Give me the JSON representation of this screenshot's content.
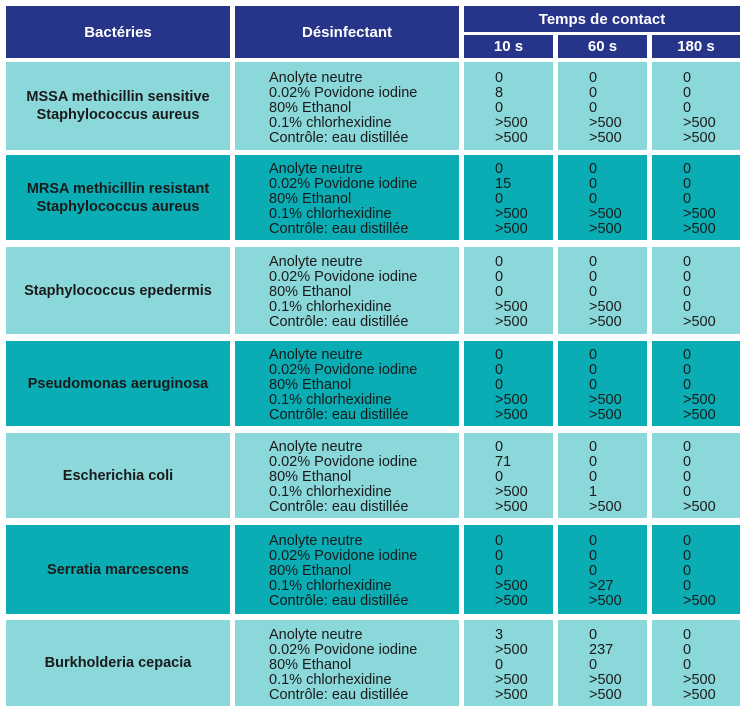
{
  "header": {
    "bacteria_label": "Bactéries",
    "disinfectant_label": "Désinfectant",
    "contact_time_label": "Temps de contact",
    "times": [
      "10 s",
      "60 s",
      "180 s"
    ]
  },
  "disinfectants": "Anolyte neutre\n0.02% Povidone iodine\n80% Ethanol\n0.1% chlorhexidine\nContrôle: eau distillée",
  "rows": [
    {
      "bacteria": "MSSA methicillin sensitive Staphylococcus aureus",
      "t10": "0\n8\n0\n>500\n>500",
      "t60": "0\n0\n0\n>500\n>500",
      "t180": "0\n0\n0\n>500\n>500"
    },
    {
      "bacteria": "MRSA methicillin resistant Staphylococcus aureus",
      "t10": "0\n15\n0\n>500\n>500",
      "t60": "0\n0\n0\n>500\n>500",
      "t180": "0\n0\n0\n>500\n>500"
    },
    {
      "bacteria": "Staphylococcus epedermis",
      "t10": "0\n0\n0\n>500\n>500",
      "t60": "0\n0\n0\n>500\n>500",
      "t180": "0\n0\n0\n0\n>500"
    },
    {
      "bacteria": "Pseudomonas aeruginosa",
      "t10": "0\n0\n0\n>500\n>500",
      "t60": "0\n0\n0\n>500\n>500",
      "t180": "0\n0\n0\n>500\n>500"
    },
    {
      "bacteria": "Escherichia coli",
      "t10": "0\n71\n0\n>500\n>500",
      "t60": "0\n0\n0\n1\n>500",
      "t180": "0\n0\n0\n0\n>500"
    },
    {
      "bacteria": "Serratia marcescens",
      "t10": "0\n0\n0\n>500\n>500",
      "t60": "0\n0\n0\n>27\n>500",
      "t180": "0\n0\n0\n0\n>500"
    },
    {
      "bacteria": "Burkholderia cepacia",
      "t10": "3\n>500\n0\n>500\n>500",
      "t60": "0\n237\n0\n>500\n>500",
      "t180": "0\n0\n0\n>500\n>500"
    }
  ],
  "colors": {
    "header": "#26348a",
    "row_light": "#8bd8db",
    "row_dark": "#09adb3"
  }
}
